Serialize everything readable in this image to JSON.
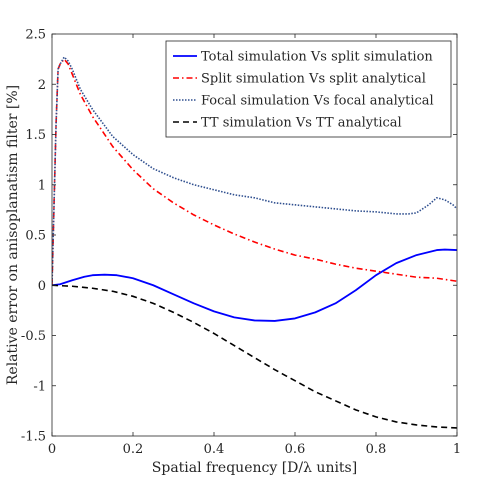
{
  "chart_data": {
    "type": "line",
    "xlabel": "Spatial frequency [D/λ units]",
    "ylabel": "Relative error on anisoplanatism filter [%]",
    "xlim": [
      0,
      1
    ],
    "ylim": [
      -1.5,
      2.5
    ],
    "xticks": [
      0,
      0.2,
      0.4,
      0.6,
      0.8,
      1
    ],
    "xtick_labels": [
      "0",
      "0.2",
      "0.4",
      "0.6",
      "0.8",
      "1"
    ],
    "yticks": [
      -1.5,
      -1,
      -0.5,
      0,
      0.5,
      1,
      1.5,
      2,
      2.5
    ],
    "ytick_labels": [
      "-1.5",
      "-1",
      "-0.5",
      "0",
      "0.5",
      "1",
      "1.5",
      "2",
      "2.5"
    ],
    "grid": false,
    "legend_position": "top-right",
    "series": [
      {
        "name": "Total simulation Vs split simulation",
        "color": "#0000ff",
        "style": "solid",
        "points": [
          [
            0,
            0
          ],
          [
            0.02,
            0.01
          ],
          [
            0.05,
            0.05
          ],
          [
            0.08,
            0.085
          ],
          [
            0.1,
            0.1
          ],
          [
            0.13,
            0.105
          ],
          [
            0.16,
            0.1
          ],
          [
            0.2,
            0.07
          ],
          [
            0.25,
            0.0
          ],
          [
            0.3,
            -0.09
          ],
          [
            0.35,
            -0.18
          ],
          [
            0.4,
            -0.26
          ],
          [
            0.45,
            -0.32
          ],
          [
            0.5,
            -0.35
          ],
          [
            0.55,
            -0.355
          ],
          [
            0.6,
            -0.33
          ],
          [
            0.65,
            -0.27
          ],
          [
            0.7,
            -0.18
          ],
          [
            0.75,
            -0.05
          ],
          [
            0.8,
            0.1
          ],
          [
            0.85,
            0.22
          ],
          [
            0.9,
            0.3
          ],
          [
            0.95,
            0.35
          ],
          [
            0.97,
            0.355
          ],
          [
            1.0,
            0.35
          ]
        ]
      },
      {
        "name": "Split simulation Vs split analytical",
        "color": "#ff0000",
        "style": "dashdot",
        "points": [
          [
            0,
            0
          ],
          [
            0.005,
            0.8
          ],
          [
            0.01,
            1.6
          ],
          [
            0.015,
            2.15
          ],
          [
            0.02,
            2.2
          ],
          [
            0.03,
            2.25
          ],
          [
            0.04,
            2.2
          ],
          [
            0.05,
            2.1
          ],
          [
            0.07,
            1.9
          ],
          [
            0.1,
            1.68
          ],
          [
            0.15,
            1.38
          ],
          [
            0.2,
            1.15
          ],
          [
            0.25,
            0.96
          ],
          [
            0.3,
            0.82
          ],
          [
            0.35,
            0.7
          ],
          [
            0.4,
            0.6
          ],
          [
            0.45,
            0.51
          ],
          [
            0.5,
            0.43
          ],
          [
            0.55,
            0.36
          ],
          [
            0.6,
            0.3
          ],
          [
            0.65,
            0.26
          ],
          [
            0.7,
            0.21
          ],
          [
            0.75,
            0.17
          ],
          [
            0.8,
            0.14
          ],
          [
            0.85,
            0.11
          ],
          [
            0.9,
            0.08
          ],
          [
            0.95,
            0.07
          ],
          [
            1.0,
            0.04
          ]
        ]
      },
      {
        "name": "Focal simulation Vs focal analytical",
        "color": "#2f4f8f",
        "style": "dotted",
        "points": [
          [
            0,
            0
          ],
          [
            0.005,
            0.8
          ],
          [
            0.01,
            1.6
          ],
          [
            0.015,
            2.15
          ],
          [
            0.02,
            2.2
          ],
          [
            0.03,
            2.27
          ],
          [
            0.04,
            2.23
          ],
          [
            0.05,
            2.15
          ],
          [
            0.07,
            1.95
          ],
          [
            0.1,
            1.75
          ],
          [
            0.15,
            1.48
          ],
          [
            0.2,
            1.3
          ],
          [
            0.25,
            1.16
          ],
          [
            0.3,
            1.07
          ],
          [
            0.35,
            1.0
          ],
          [
            0.4,
            0.95
          ],
          [
            0.45,
            0.9
          ],
          [
            0.5,
            0.87
          ],
          [
            0.55,
            0.82
          ],
          [
            0.6,
            0.8
          ],
          [
            0.65,
            0.78
          ],
          [
            0.7,
            0.76
          ],
          [
            0.75,
            0.74
          ],
          [
            0.8,
            0.73
          ],
          [
            0.85,
            0.71
          ],
          [
            0.88,
            0.71
          ],
          [
            0.9,
            0.72
          ],
          [
            0.93,
            0.8
          ],
          [
            0.95,
            0.87
          ],
          [
            0.97,
            0.85
          ],
          [
            0.99,
            0.8
          ],
          [
            1.0,
            0.76
          ]
        ]
      },
      {
        "name": "TT simulation Vs TT analytical",
        "color": "#000000",
        "style": "dashed",
        "points": [
          [
            0,
            0
          ],
          [
            0.05,
            -0.01
          ],
          [
            0.1,
            -0.03
          ],
          [
            0.15,
            -0.06
          ],
          [
            0.2,
            -0.11
          ],
          [
            0.25,
            -0.18
          ],
          [
            0.3,
            -0.27
          ],
          [
            0.35,
            -0.37
          ],
          [
            0.4,
            -0.48
          ],
          [
            0.45,
            -0.6
          ],
          [
            0.5,
            -0.72
          ],
          [
            0.55,
            -0.84
          ],
          [
            0.6,
            -0.95
          ],
          [
            0.65,
            -1.06
          ],
          [
            0.7,
            -1.15
          ],
          [
            0.75,
            -1.24
          ],
          [
            0.8,
            -1.31
          ],
          [
            0.85,
            -1.36
          ],
          [
            0.9,
            -1.39
          ],
          [
            0.95,
            -1.41
          ],
          [
            1.0,
            -1.42
          ]
        ]
      }
    ]
  }
}
